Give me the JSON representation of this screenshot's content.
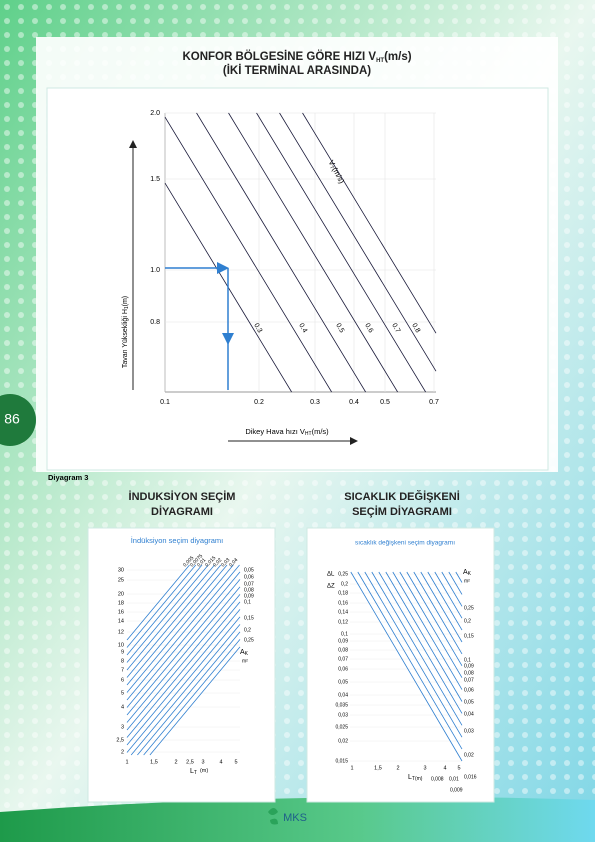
{
  "page_number": "86",
  "main": {
    "title_line1": "KONFOR BÖLGESİNE GÖRE HIZI V",
    "title_sub": "HT",
    "title_unit": "(m/s)",
    "title_line2": "(İKİ TERMİNAL ARASINDA)",
    "y_label": "Tavan Yüksekliği  H",
    "y_label_sub": "1",
    "y_label_unit": "(m)",
    "x_label": "Dikey Hava hızı V",
    "x_label_sub": "HT",
    "x_label_unit": "(m/s)",
    "yticks": [
      "2.0",
      "1.5",
      "1.0",
      "0.8"
    ],
    "xticks": [
      "0.1",
      "0.2",
      "0.3",
      "0.4",
      "0.5",
      "0.7"
    ],
    "line_labels": [
      "0.3",
      "0.4",
      "0.5",
      "0.6",
      "0.7",
      "0.8"
    ],
    "vt_label": "V",
    "vt_sub": "T",
    "vt_unit": "(m/s)"
  },
  "caption": "Diyagram 3",
  "left": {
    "heading": [
      "İNDUKSİYON SEÇİM",
      "DİYAGRAMI"
    ],
    "title": "İndüksiyon seçim diyagramı",
    "yticks": [
      "30",
      "25",
      "20",
      "18",
      "16",
      "14",
      "12",
      "10",
      "9",
      "8",
      "7",
      "6",
      "5",
      "4",
      "3",
      "2,5",
      "2"
    ],
    "xticks": [
      "1",
      "1,5",
      "2",
      "2,5",
      "3",
      "4",
      "5"
    ],
    "x_label": "L",
    "x_sub": "T",
    "x_unit": "(m)",
    "top_labels": [
      "0,005",
      "0,0075",
      "0,01",
      "0,015",
      "0,02",
      "0,03",
      "0,04"
    ],
    "right_labels": [
      "0,05",
      "0,06",
      "0,07",
      "0,08",
      "0,09",
      "0,1",
      "0,15",
      "0,2",
      "0,25"
    ],
    "ak": "A",
    "ak_sub": "K",
    "ak_unit": "m²"
  },
  "right": {
    "heading": [
      "SICAKLIK DEĞİŞKENİ",
      "SEÇİM DİYAGRAMI"
    ],
    "title": "sıcaklık değişkeni seçim diyagramı",
    "y_top": "ΔL",
    "y_bottom": "ΔZ",
    "yticks": [
      "0,25",
      "0,2",
      "0,18",
      "0,16",
      "0,14",
      "0,12",
      "0,1",
      "0,09",
      "0,08",
      "0,07",
      "0,06",
      "0,05",
      "0,04",
      "0,035",
      "0,03",
      "0,025",
      "0,02",
      "0,015"
    ],
    "xticks": [
      "1",
      "1,5",
      "2",
      "3",
      "4",
      "5"
    ],
    "x_label": "L",
    "x_sub": "T(m)",
    "right_labels": [
      "0,25",
      "0,2",
      "0,15",
      "0,1",
      "0,09",
      "0,08",
      "0,07",
      "0,06",
      "0,05",
      "0,04",
      "0,03",
      "0,02",
      "0,016"
    ],
    "bottom_labels": [
      "0,008",
      "0,01",
      "0,009"
    ],
    "ak": "A",
    "ak_sub": "K",
    "ak_unit": "m²"
  },
  "logo": "MKS"
}
